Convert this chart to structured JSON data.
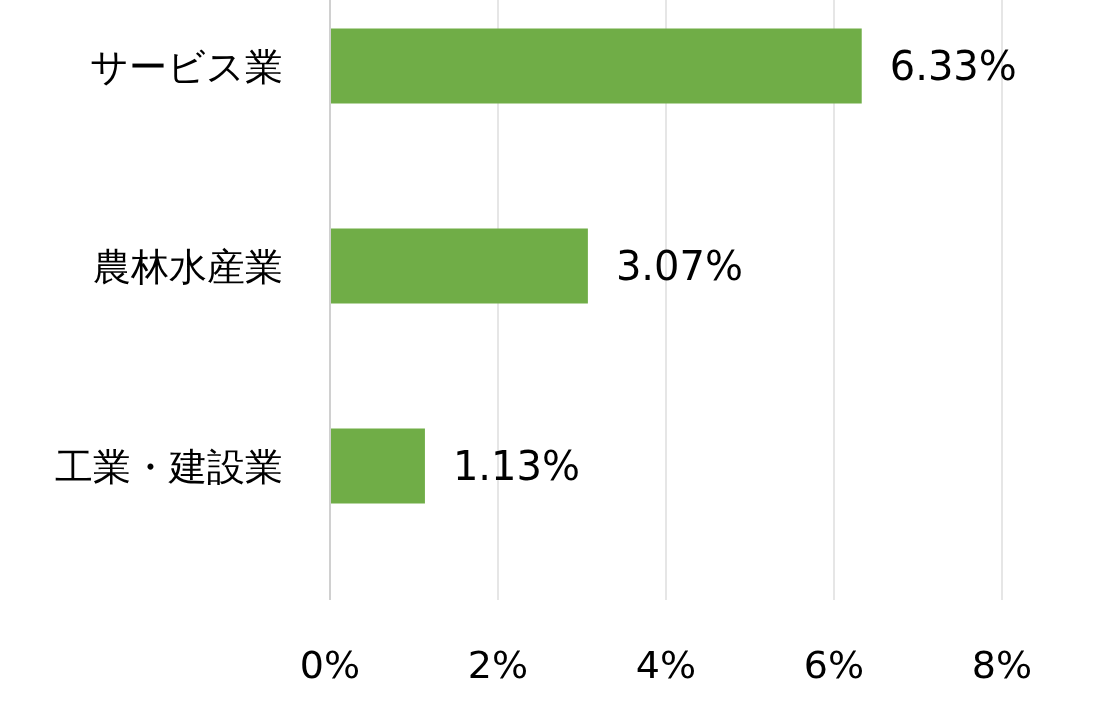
{
  "chart_data": {
    "type": "bar",
    "orientation": "horizontal",
    "categories": [
      "サービス業",
      "農林水産業",
      "工業・建設業"
    ],
    "values": [
      6.33,
      3.07,
      1.13
    ],
    "value_labels": [
      "6.33%",
      "3.07%",
      "1.13%"
    ],
    "color": "#70ad47",
    "xlim": [
      0,
      8
    ],
    "xticks": [
      {
        "value": 0,
        "label": "0%"
      },
      {
        "value": 2,
        "label": "2%"
      },
      {
        "value": 4,
        "label": "4%"
      },
      {
        "value": 6,
        "label": "6%"
      },
      {
        "value": 8,
        "label": "8%"
      }
    ],
    "grid": "x"
  }
}
